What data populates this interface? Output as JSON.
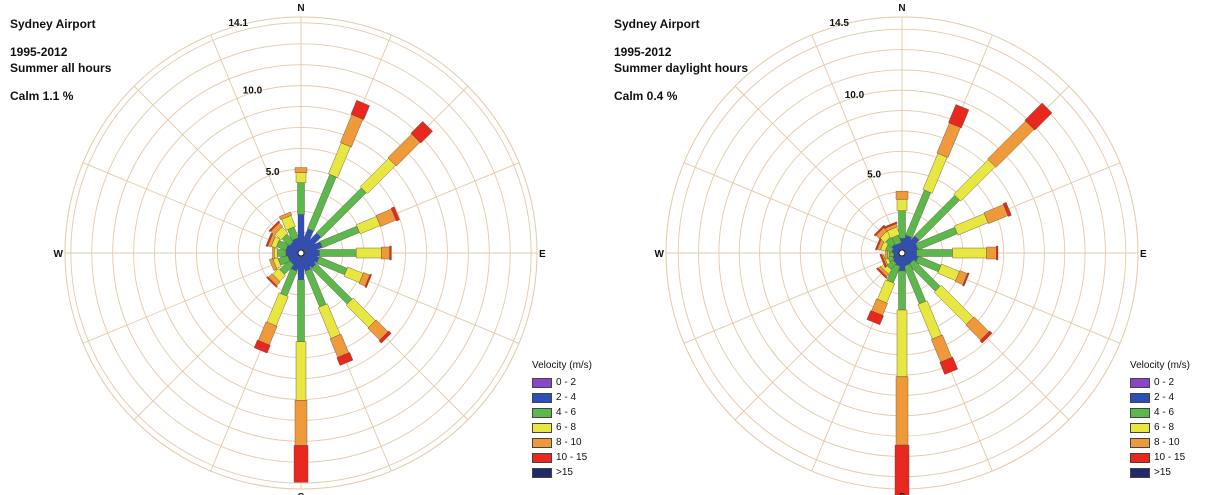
{
  "velocity_bins": [
    "0 - 2",
    "2 - 4",
    "4 - 6",
    "6 - 8",
    "8 - 10",
    "10 - 15",
    ">15"
  ],
  "colors": [
    "#8e44c8",
    "#2f4fb8",
    "#5cb84a",
    "#e8e640",
    "#ef9a3a",
    "#e8281e",
    "#202a6a"
  ],
  "legend_title": "Velocity (m/s)",
  "compass": [
    "N",
    "E",
    "S",
    "W"
  ],
  "chart_data": [
    {
      "type": "windrose",
      "title": "Sydney Airport",
      "period": "1995-2012",
      "subtitle": "Summer all hours",
      "calm": "Calm 1.1 %",
      "ring_labels": [
        "5.0",
        "10.0",
        "14.1"
      ],
      "ring_values": [
        5.0,
        10.0,
        14.1
      ],
      "rmax": 14.1,
      "units": "percent",
      "directions": [
        0,
        22.5,
        45,
        67.5,
        90,
        112.5,
        135,
        157.5,
        180,
        202.5,
        225,
        247.5,
        270,
        292.5,
        315,
        337.5
      ],
      "values": [
        [
          0.1,
          2.2,
          1.9,
          0.6,
          0.3,
          0.0,
          0.0
        ],
        [
          0.1,
          1.4,
          3.5,
          2.0,
          1.8,
          0.9,
          0.0
        ],
        [
          0.1,
          1.4,
          3.8,
          2.4,
          2.0,
          1.0,
          0.0
        ],
        [
          0.1,
          1.2,
          2.4,
          1.3,
          1.0,
          0.2,
          0.0
        ],
        [
          0.1,
          1.0,
          2.2,
          1.5,
          0.5,
          0.1,
          0.0
        ],
        [
          0.1,
          1.0,
          1.8,
          1.0,
          0.4,
          0.1,
          0.0
        ],
        [
          0.1,
          1.0,
          3.0,
          1.9,
          1.0,
          0.2,
          0.0
        ],
        [
          0.1,
          1.0,
          2.3,
          2.0,
          1.2,
          0.5,
          0.0
        ],
        [
          0.1,
          1.5,
          3.7,
          3.5,
          2.7,
          2.2,
          0.0
        ],
        [
          0.1,
          1.0,
          1.6,
          1.9,
          1.2,
          0.5,
          0.0
        ],
        [
          0.1,
          0.7,
          0.8,
          0.5,
          0.3,
          0.1,
          0.0
        ],
        [
          0.1,
          0.7,
          0.6,
          0.3,
          0.2,
          0.0,
          0.0
        ],
        [
          0.1,
          0.8,
          0.5,
          0.2,
          0.1,
          0.0,
          0.0
        ],
        [
          0.1,
          0.8,
          0.6,
          0.3,
          0.2,
          0.1,
          0.0
        ],
        [
          0.1,
          0.7,
          0.6,
          0.5,
          0.3,
          0.1,
          0.0
        ],
        [
          0.1,
          0.8,
          0.7,
          0.7,
          0.2,
          0.0,
          0.0
        ]
      ]
    },
    {
      "type": "windrose",
      "title": "Sydney Airport",
      "period": "1995-2012",
      "subtitle": "Summer daylight hours",
      "calm": "Calm 0.4 %",
      "ring_labels": [
        "5.0",
        "10.0",
        "14.5"
      ],
      "ring_values": [
        5.0,
        10.0,
        14.5
      ],
      "rmax": 14.5,
      "units": "percent",
      "directions": [
        0,
        22.5,
        45,
        67.5,
        90,
        112.5,
        135,
        157.5,
        180,
        202.5,
        225,
        247.5,
        270,
        292.5,
        315,
        337.5
      ],
      "values": [
        [
          0.1,
          0.8,
          1.7,
          0.7,
          0.5,
          0.0,
          0.0
        ],
        [
          0.1,
          1.0,
          3.0,
          2.4,
          2.0,
          1.2,
          0.0
        ],
        [
          0.1,
          1.2,
          3.5,
          3.0,
          3.3,
          1.5,
          0.0
        ],
        [
          0.1,
          0.9,
          2.6,
          2.0,
          1.3,
          0.2,
          0.0
        ],
        [
          0.1,
          0.8,
          2.2,
          2.1,
          0.6,
          0.1,
          0.0
        ],
        [
          0.1,
          0.9,
          1.5,
          1.2,
          0.5,
          0.1,
          0.0
        ],
        [
          0.1,
          0.7,
          2.3,
          2.8,
          1.3,
          0.2,
          0.0
        ],
        [
          0.1,
          0.7,
          2.5,
          2.3,
          1.5,
          0.8,
          0.0
        ],
        [
          0.1,
          1.0,
          2.4,
          4.1,
          4.2,
          3.2,
          0.0
        ],
        [
          0.1,
          0.7,
          1.1,
          1.3,
          0.8,
          0.6,
          0.0
        ],
        [
          0.1,
          0.6,
          0.5,
          0.3,
          0.2,
          0.1,
          0.0
        ],
        [
          0.1,
          0.5,
          0.3,
          0.2,
          0.1,
          0.1,
          0.0
        ],
        [
          0.1,
          0.4,
          0.3,
          0.1,
          0.1,
          0.0,
          0.0
        ],
        [
          0.1,
          0.5,
          0.4,
          0.3,
          0.2,
          0.1,
          0.0
        ],
        [
          0.1,
          0.6,
          0.5,
          0.4,
          0.3,
          0.1,
          0.0
        ],
        [
          0.1,
          0.5,
          0.5,
          0.5,
          0.2,
          0.1,
          0.0
        ]
      ]
    }
  ]
}
